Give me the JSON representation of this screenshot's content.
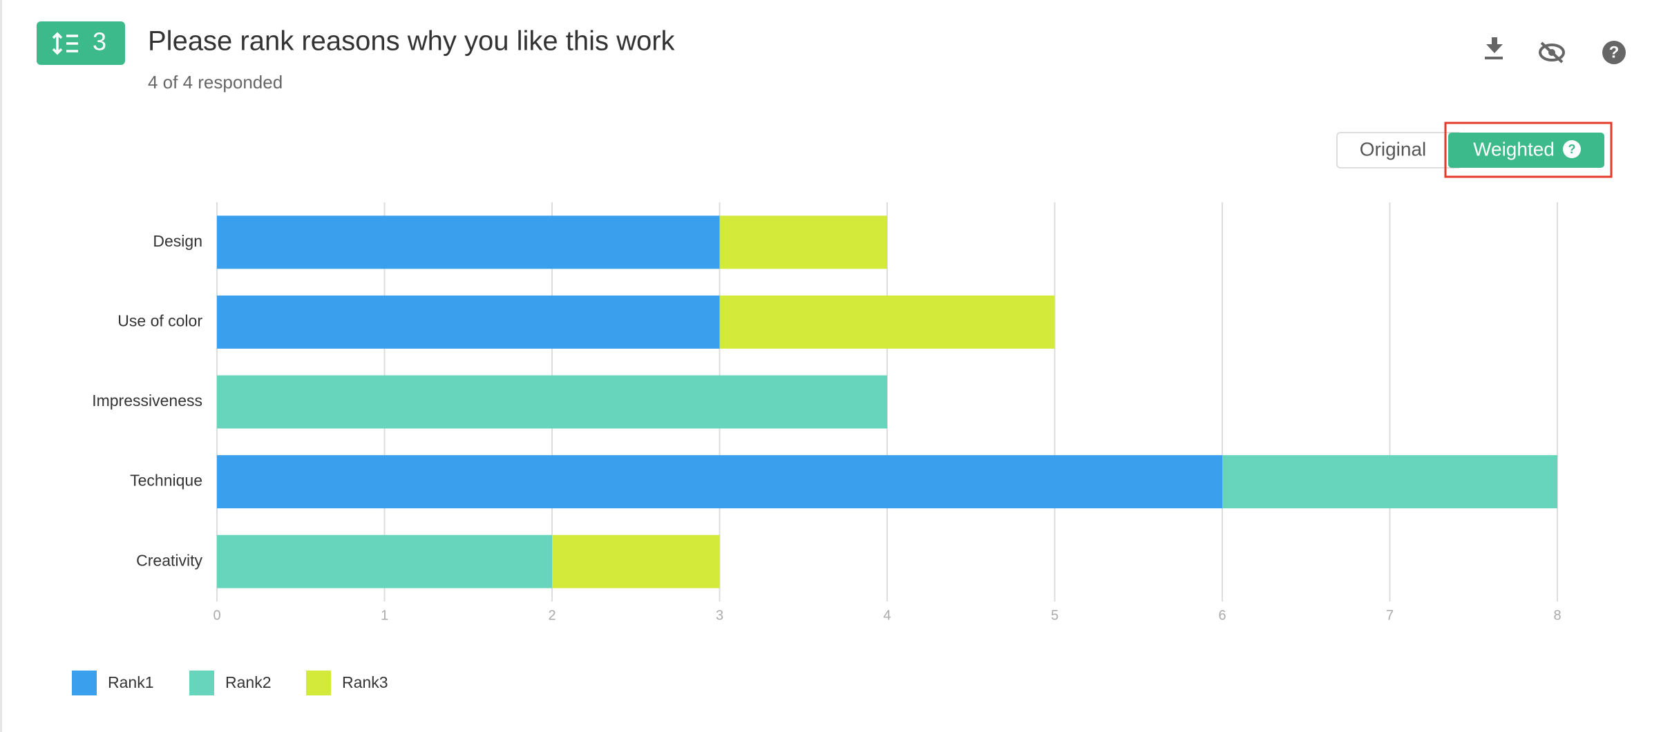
{
  "header": {
    "badge": "3",
    "title": "Please rank reasons why you like this work",
    "subtitle": "4 of 4 responded"
  },
  "toggle": [
    "Original",
    "Weighted"
  ],
  "chart_data": {
    "type": "stacked-bar-horizontal",
    "categories": [
      "Design",
      "Use of color",
      "Impressiveness",
      "Technique",
      "Creativity"
    ],
    "series": [
      {
        "name": "Rank1",
        "color": "#3a9fec",
        "values": [
          3,
          3,
          0,
          6,
          0
        ]
      },
      {
        "name": "Rank2",
        "color": "#66d5bb",
        "values": [
          0,
          0,
          4,
          2,
          2
        ]
      },
      {
        "name": "Rank3",
        "color": "#d4ea3b",
        "values": [
          1,
          2,
          0,
          0,
          1
        ]
      }
    ],
    "xlim": [
      0,
      8
    ],
    "xticks": [
      0,
      1,
      2,
      3,
      4,
      5,
      6,
      7,
      8
    ],
    "grid": true,
    "legend": "bottom-left"
  }
}
